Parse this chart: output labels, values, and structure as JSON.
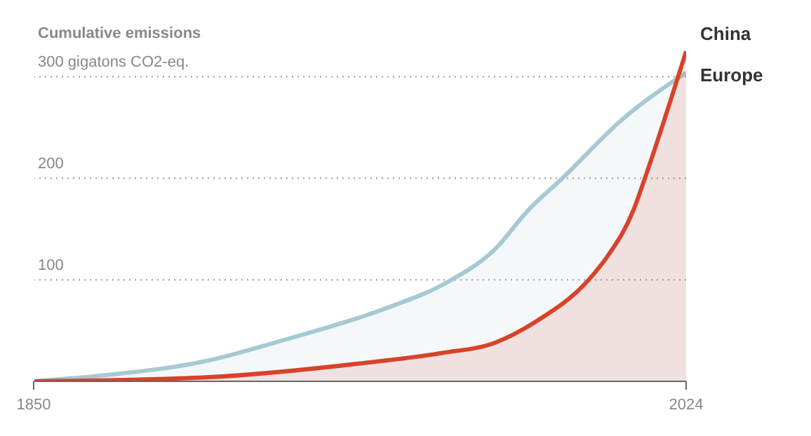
{
  "chart_data": {
    "type": "area",
    "title": "Cumulative emissions",
    "xlim": [
      1850,
      2024
    ],
    "xticks": [
      1850,
      2024
    ],
    "ylim": [
      0,
      330
    ],
    "yticks": [
      {
        "value": 100,
        "label": "100"
      },
      {
        "value": 200,
        "label": "200"
      },
      {
        "value": 300,
        "label": "300 gigatons CO2-eq."
      }
    ],
    "grid": "y",
    "legend": false,
    "series": [
      {
        "name": "Europe",
        "color": "#a6c9d3",
        "x": [
          1850,
          1869,
          1896,
          1917,
          1944,
          1960,
          1973,
          1982,
          1991,
          2007,
          2024
        ],
        "values": [
          0,
          6,
          20,
          41,
          72,
          97,
          130,
          169,
          200,
          258,
          304
        ]
      },
      {
        "name": "China",
        "color": "#d7432a",
        "x": [
          1850,
          1896,
          1938,
          1959,
          1973,
          1984,
          1998,
          2003,
          2010,
          2013,
          2024
        ],
        "values": [
          0,
          4,
          18,
          28,
          38,
          59,
          100,
          123,
          169,
          200,
          325
        ]
      }
    ]
  }
}
